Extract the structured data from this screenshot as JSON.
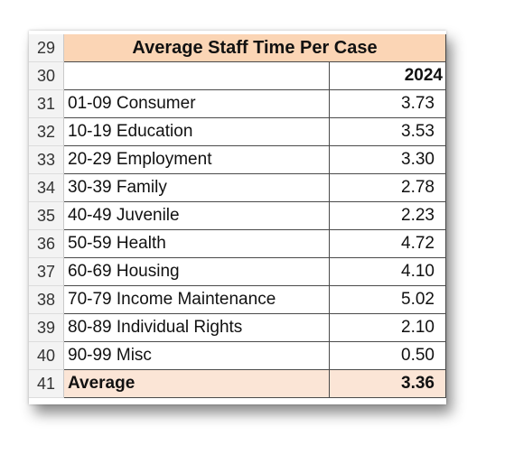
{
  "table": {
    "title": "Average Staff Time Per Case",
    "title_row_number": "29",
    "header_row_number": "30",
    "year_header": "2024",
    "rows": [
      {
        "num": "31",
        "label": "01-09 Consumer",
        "value": "3.73"
      },
      {
        "num": "32",
        "label": "10-19 Education",
        "value": "3.53"
      },
      {
        "num": "33",
        "label": "20-29 Employment",
        "value": "3.30"
      },
      {
        "num": "34",
        "label": "30-39 Family",
        "value": "2.78"
      },
      {
        "num": "35",
        "label": "40-49 Juvenile",
        "value": "2.23"
      },
      {
        "num": "36",
        "label": "50-59 Health",
        "value": "4.72"
      },
      {
        "num": "37",
        "label": "60-69 Housing",
        "value": "4.10"
      },
      {
        "num": "38",
        "label": "70-79 Income Maintenance",
        "value": "5.02"
      },
      {
        "num": "39",
        "label": "80-89 Individual Rights",
        "value": "2.10"
      },
      {
        "num": "40",
        "label": "90-99 Misc",
        "value": "0.50"
      }
    ],
    "average": {
      "num": "41",
      "label": "Average",
      "value": "3.36"
    }
  },
  "colors": {
    "title_fill": "#fbd5b5",
    "average_fill": "#fbe5d6"
  }
}
